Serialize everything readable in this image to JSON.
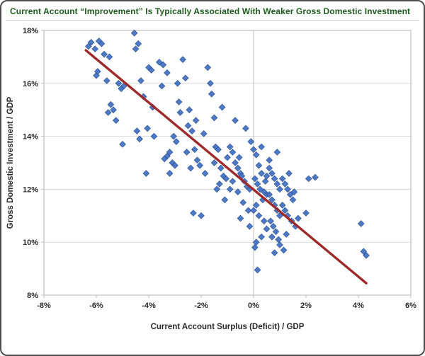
{
  "chart_data": {
    "type": "scatter",
    "title": "Current Account “Improvement” Is Typically Associated With Weaker Gross Domestic Investment",
    "xlabel": "Current Account Surplus (Deficit) / GDP",
    "ylabel": "Gross Domestic Investment / GDP",
    "xlim": [
      -8,
      6
    ],
    "ylim": [
      8,
      18
    ],
    "x_ticks": [
      "-8%",
      "-6%",
      "-4%",
      "-2%",
      "0%",
      "2%",
      "4%",
      "6%"
    ],
    "x_tick_values": [
      -8,
      -6,
      -4,
      -2,
      0,
      2,
      4,
      6
    ],
    "y_ticks": [
      "8%",
      "10%",
      "12%",
      "14%",
      "16%",
      "18%"
    ],
    "y_tick_values": [
      8,
      10,
      12,
      14,
      16,
      18
    ],
    "grid": "horizontal",
    "legend": "none",
    "marker": {
      "shape": "diamond",
      "color": "#4472C4",
      "edge": "#2E5597",
      "size": 4.3
    },
    "trend_line": {
      "color": "#9E2A2B",
      "x1": -6.4,
      "y1": 17.25,
      "x2": 4.3,
      "y2": 8.45
    },
    "colors": {
      "title": "#1E5C1E",
      "grid": "#D9D9D9",
      "plot_border": "#BFBFBF",
      "zero_line": "#BFBFBF",
      "tick": "#2b2b2b",
      "frame_border": "#4d4d4d"
    },
    "points": [
      [
        -6.3,
        17.4
      ],
      [
        -6.2,
        17.55
      ],
      [
        -6.05,
        17.3
      ],
      [
        -6.0,
        16.3
      ],
      [
        -5.95,
        16.45
      ],
      [
        -5.9,
        17.6
      ],
      [
        -5.8,
        17.5
      ],
      [
        -5.7,
        17.1
      ],
      [
        -5.6,
        16.1
      ],
      [
        -5.5,
        17.0
      ],
      [
        -5.45,
        15.2
      ],
      [
        -5.35,
        15.0
      ],
      [
        -5.55,
        14.9
      ],
      [
        -5.25,
        14.6
      ],
      [
        -5.15,
        16.0
      ],
      [
        -5.05,
        15.8
      ],
      [
        -4.95,
        15.9
      ],
      [
        -5.0,
        13.7
      ],
      [
        -4.55,
        17.9
      ],
      [
        -4.5,
        17.3
      ],
      [
        -4.4,
        17.5
      ],
      [
        -4.3,
        16.1
      ],
      [
        -4.2,
        15.5
      ],
      [
        -4.05,
        14.3
      ],
      [
        -4.45,
        14.2
      ],
      [
        -4.35,
        13.9
      ],
      [
        -4.0,
        16.6
      ],
      [
        -3.9,
        16.5
      ],
      [
        -4.1,
        12.6
      ],
      [
        -3.85,
        15.1
      ],
      [
        -3.8,
        14.0
      ],
      [
        -3.6,
        16.8
      ],
      [
        -3.45,
        16.7
      ],
      [
        -3.3,
        16.4
      ],
      [
        -3.5,
        15.9
      ],
      [
        -3.2,
        13.4
      ],
      [
        -3.3,
        13.25
      ],
      [
        -3.4,
        13.15
      ],
      [
        -3.1,
        13.0
      ],
      [
        -3.0,
        12.9
      ],
      [
        -3.2,
        12.6
      ],
      [
        -3.05,
        14.0
      ],
      [
        -2.95,
        13.8
      ],
      [
        -2.85,
        15.3
      ],
      [
        -2.8,
        14.9
      ],
      [
        -2.9,
        16.0
      ],
      [
        -2.7,
        16.9
      ],
      [
        -2.6,
        16.2
      ],
      [
        -2.45,
        15.0
      ],
      [
        -2.5,
        14.4
      ],
      [
        -2.35,
        14.2
      ],
      [
        -2.25,
        13.5
      ],
      [
        -2.15,
        13.1
      ],
      [
        -2.05,
        12.9
      ],
      [
        -2.4,
        12.8
      ],
      [
        -2.3,
        11.1
      ],
      [
        -2.0,
        11.0
      ],
      [
        -2.55,
        13.4
      ],
      [
        -2.2,
        14.6
      ],
      [
        -1.9,
        14.1
      ],
      [
        -1.85,
        12.6
      ],
      [
        -1.75,
        16.6
      ],
      [
        -1.65,
        16.0
      ],
      [
        -1.6,
        15.6
      ],
      [
        -1.5,
        14.7
      ],
      [
        -1.45,
        13.6
      ],
      [
        -1.35,
        13.5
      ],
      [
        -1.5,
        13.0
      ],
      [
        -1.25,
        12.8
      ],
      [
        -1.15,
        12.5
      ],
      [
        -1.05,
        12.4
      ],
      [
        -1.3,
        12.2
      ],
      [
        -1.1,
        11.6
      ],
      [
        -1.0,
        13.2
      ],
      [
        -1.4,
        12.0
      ],
      [
        -1.2,
        15.1
      ],
      [
        -0.9,
        13.6
      ],
      [
        -0.8,
        13.4
      ],
      [
        -0.7,
        13.0
      ],
      [
        -0.6,
        12.8
      ],
      [
        -0.5,
        12.6
      ],
      [
        -0.45,
        12.5
      ],
      [
        -0.35,
        12.3
      ],
      [
        -0.25,
        12.1
      ],
      [
        -0.15,
        12.0
      ],
      [
        -0.8,
        12.3
      ],
      [
        -0.6,
        11.9
      ],
      [
        -0.4,
        11.5
      ],
      [
        -0.2,
        11.2
      ],
      [
        -0.5,
        10.9
      ],
      [
        -0.3,
        14.3
      ],
      [
        -0.7,
        14.6
      ],
      [
        -0.9,
        12.0
      ],
      [
        -0.1,
        13.8
      ],
      [
        -0.55,
        13.2
      ],
      [
        -0.15,
        10.6
      ],
      [
        0.0,
        13.5
      ],
      [
        0.1,
        13.3
      ],
      [
        0.2,
        12.9
      ],
      [
        0.3,
        12.6
      ],
      [
        0.05,
        12.4
      ],
      [
        0.15,
        12.2
      ],
      [
        0.25,
        12.0
      ],
      [
        0.4,
        11.9
      ],
      [
        0.5,
        11.8
      ],
      [
        0.35,
        11.6
      ],
      [
        0.1,
        11.4
      ],
      [
        0.0,
        11.2
      ],
      [
        0.2,
        11.0
      ],
      [
        0.4,
        10.8
      ],
      [
        0.5,
        10.5
      ],
      [
        0.3,
        10.2
      ],
      [
        0.1,
        10.0
      ],
      [
        0.05,
        9.8
      ],
      [
        0.5,
        12.5
      ],
      [
        0.45,
        12.3
      ],
      [
        0.15,
        8.95
      ],
      [
        0.3,
        13.6
      ],
      [
        0.6,
        12.8
      ],
      [
        0.7,
        12.6
      ],
      [
        0.8,
        12.4
      ],
      [
        0.9,
        12.2
      ],
      [
        1.0,
        12.0
      ],
      [
        0.6,
        11.8
      ],
      [
        0.7,
        11.6
      ],
      [
        0.8,
        11.4
      ],
      [
        0.9,
        11.2
      ],
      [
        1.0,
        11.0
      ],
      [
        0.65,
        10.8
      ],
      [
        0.75,
        10.6
      ],
      [
        0.85,
        10.4
      ],
      [
        0.95,
        10.1
      ],
      [
        1.0,
        9.9
      ],
      [
        0.8,
        9.6
      ],
      [
        0.6,
        13.1
      ],
      [
        0.9,
        13.4
      ],
      [
        0.7,
        10.2
      ],
      [
        1.1,
        12.4
      ],
      [
        1.2,
        12.2
      ],
      [
        1.3,
        12.0
      ],
      [
        1.4,
        11.8
      ],
      [
        1.5,
        11.6
      ],
      [
        1.1,
        11.4
      ],
      [
        1.2,
        11.2
      ],
      [
        1.3,
        11.0
      ],
      [
        1.45,
        10.8
      ],
      [
        1.6,
        10.6
      ],
      [
        1.25,
        10.3
      ],
      [
        1.55,
        11.9
      ],
      [
        1.15,
        9.7
      ],
      [
        1.7,
        10.9
      ],
      [
        1.35,
        12.6
      ],
      [
        2.1,
        12.4
      ],
      [
        2.35,
        12.45
      ],
      [
        2.0,
        11.1
      ],
      [
        4.1,
        10.7
      ],
      [
        4.2,
        9.65
      ],
      [
        4.3,
        9.5
      ]
    ]
  }
}
